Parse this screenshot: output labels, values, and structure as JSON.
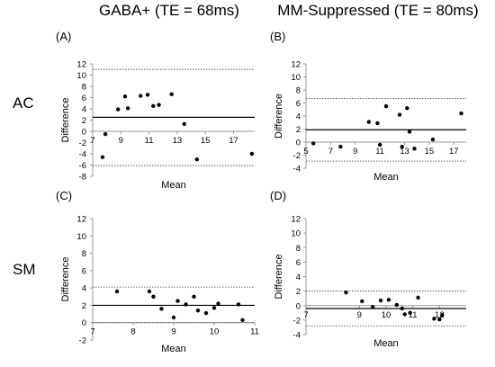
{
  "figure": {
    "col_titles": [
      "GABA+ (TE = 68ms)",
      "MM-Suppressed (TE = 80ms)"
    ],
    "row_labels": [
      "AC",
      "SM"
    ]
  },
  "chart_data": [
    {
      "type": "scatter",
      "panel_label": "(A)",
      "xlabel": "Mean",
      "ylabel": "Difference",
      "xlim": [
        7,
        18.5
      ],
      "ylim": [
        -8,
        12
      ],
      "xticks": [
        7,
        9,
        11,
        13,
        15,
        17
      ],
      "yticks": [
        -8,
        -6,
        -4,
        -2,
        0,
        2,
        4,
        6,
        8,
        10,
        12
      ],
      "mean_line": 2.5,
      "limits": [
        -6.1,
        11.0
      ],
      "points": [
        [
          7.7,
          -4.6
        ],
        [
          7.9,
          -0.5
        ],
        [
          8.8,
          3.9
        ],
        [
          9.3,
          6.2
        ],
        [
          9.5,
          4.1
        ],
        [
          10.4,
          6.3
        ],
        [
          10.9,
          6.5
        ],
        [
          11.3,
          4.5
        ],
        [
          11.7,
          4.7
        ],
        [
          12.6,
          6.6
        ],
        [
          13.5,
          1.3
        ],
        [
          14.4,
          -5.0
        ],
        [
          18.3,
          -4.0
        ]
      ]
    },
    {
      "type": "scatter",
      "panel_label": "(B)",
      "xlabel": "Mean",
      "ylabel": "Difference",
      "xlim": [
        5,
        18
      ],
      "ylim": [
        -4,
        12
      ],
      "xticks": [
        5,
        7,
        9,
        11,
        13,
        15,
        17
      ],
      "yticks": [
        -4,
        -2,
        0,
        2,
        4,
        6,
        8,
        10,
        12
      ],
      "mean_line": 1.9,
      "limits": [
        -2.9,
        6.7
      ],
      "points": [
        [
          5.6,
          -0.2
        ],
        [
          7.8,
          -0.7
        ],
        [
          10.1,
          3.1
        ],
        [
          10.8,
          2.9
        ],
        [
          11.0,
          -0.4
        ],
        [
          11.5,
          5.5
        ],
        [
          12.6,
          4.2
        ],
        [
          12.8,
          -0.7
        ],
        [
          13.2,
          5.2
        ],
        [
          13.4,
          1.6
        ],
        [
          13.8,
          -1.0
        ],
        [
          15.3,
          0.4
        ],
        [
          17.6,
          4.4
        ]
      ]
    },
    {
      "type": "scatter",
      "panel_label": "(C)",
      "xlabel": "Mean",
      "ylabel": "Difference",
      "xlim": [
        7,
        11
      ],
      "ylim": [
        -2,
        12
      ],
      "xticks": [
        7,
        8,
        9,
        10,
        11
      ],
      "yticks": [
        -2,
        0,
        2,
        4,
        6,
        8,
        10,
        12
      ],
      "mean_line": 2.0,
      "limits": [
        0.0,
        4.1
      ],
      "points": [
        [
          7.6,
          3.6
        ],
        [
          8.4,
          3.6
        ],
        [
          8.5,
          3.0
        ],
        [
          8.7,
          1.6
        ],
        [
          9.0,
          0.6
        ],
        [
          9.1,
          2.5
        ],
        [
          9.3,
          2.1
        ],
        [
          9.5,
          3.0
        ],
        [
          9.6,
          1.4
        ],
        [
          9.8,
          1.1
        ],
        [
          10.0,
          1.7
        ],
        [
          10.1,
          2.2
        ],
        [
          10.6,
          2.1
        ],
        [
          10.7,
          0.3
        ]
      ]
    },
    {
      "type": "scatter",
      "panel_label": "(D)",
      "xlabel": "Mean",
      "ylabel": "Difference",
      "xlim": [
        7,
        13
      ],
      "ylim": [
        -4,
        12
      ],
      "xticks": [
        7,
        9,
        10,
        11,
        12
      ],
      "yticks": [
        -4,
        -2,
        0,
        2,
        4,
        6,
        8,
        10,
        12
      ],
      "mean_line": -0.4,
      "limits": [
        -2.8,
        2.0
      ],
      "points": [
        [
          8.5,
          1.8
        ],
        [
          9.1,
          0.6
        ],
        [
          9.5,
          -0.2
        ],
        [
          9.8,
          0.7
        ],
        [
          10.1,
          0.8
        ],
        [
          10.4,
          0.1
        ],
        [
          10.6,
          -0.4
        ],
        [
          10.7,
          -1.2
        ],
        [
          10.9,
          -1.0
        ],
        [
          11.2,
          1.1
        ],
        [
          11.8,
          -1.8
        ],
        [
          12.0,
          -1.9
        ],
        [
          12.1,
          -1.3
        ]
      ]
    }
  ]
}
